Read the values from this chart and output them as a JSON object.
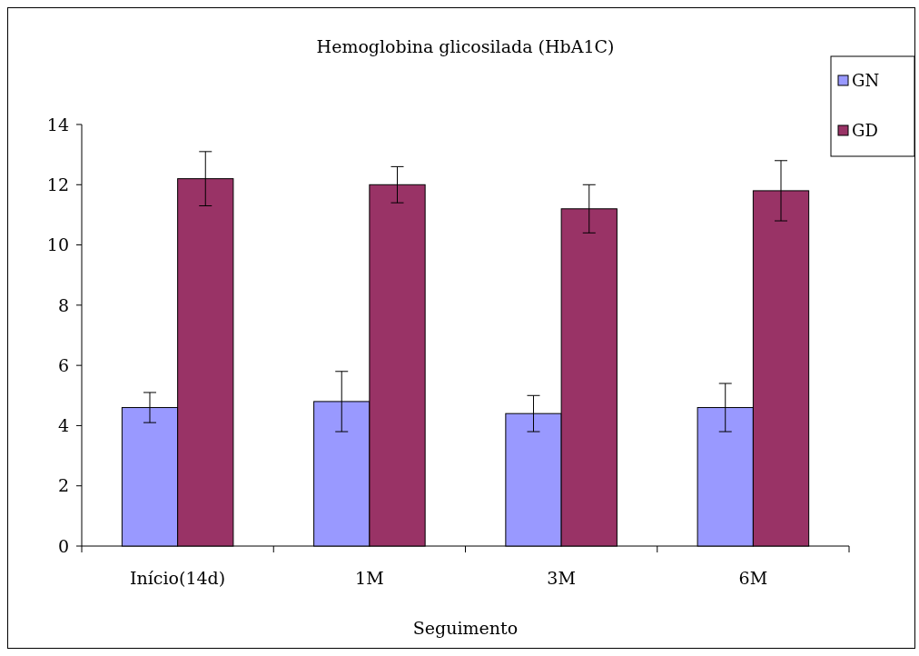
{
  "chart_data": {
    "type": "bar",
    "title": "Hemoglobina glicosilada (HbA1C)",
    "xlabel": "Seguimento",
    "categories": [
      "Início(14d)",
      "1M",
      "3M",
      "6M"
    ],
    "series": [
      {
        "name": "GN",
        "color": "#9999ff",
        "values": [
          4.6,
          4.8,
          4.4,
          4.6
        ],
        "errors": [
          [
            4.1,
            5.1
          ],
          [
            3.8,
            5.8
          ],
          [
            3.8,
            5.0
          ],
          [
            3.8,
            5.4
          ]
        ]
      },
      {
        "name": "GD",
        "color": "#993366",
        "values": [
          12.2,
          12.0,
          11.2,
          11.8
        ],
        "errors": [
          [
            11.3,
            13.1
          ],
          [
            11.4,
            12.6
          ],
          [
            10.4,
            12.0
          ],
          [
            10.8,
            12.8
          ]
        ]
      }
    ],
    "ylim": [
      0,
      14
    ],
    "yticks": [
      0,
      2,
      4,
      6,
      8,
      10,
      12,
      14
    ],
    "legend": "top right"
  }
}
